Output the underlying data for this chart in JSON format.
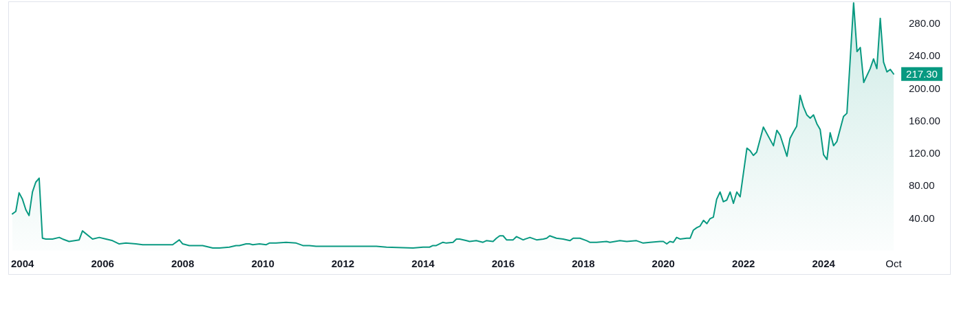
{
  "chart_data": {
    "type": "area",
    "x": [
      "2003-10",
      "2003-11",
      "2003-12",
      "2004-01",
      "2004-02",
      "2004-03",
      "2004-04",
      "2004-05",
      "2004-06",
      "2004-07",
      "2004-08",
      "2004-10",
      "2004-12",
      "2005-01",
      "2005-03",
      "2005-06",
      "2005-07",
      "2005-10",
      "2005-12",
      "2006-02",
      "2006-04",
      "2006-06",
      "2006-08",
      "2006-11",
      "2007-01",
      "2007-04",
      "2007-07",
      "2007-10",
      "2007-12",
      "2008-01",
      "2008-03",
      "2008-05",
      "2008-07",
      "2008-10",
      "2008-12",
      "2009-03",
      "2009-05",
      "2009-06",
      "2009-08",
      "2009-09",
      "2009-10",
      "2009-12",
      "2010-02",
      "2010-03",
      "2010-05",
      "2010-08",
      "2010-11",
      "2011-01",
      "2011-03",
      "2011-05",
      "2011-09",
      "2012-02",
      "2012-08",
      "2012-11",
      "2013-02",
      "2013-10",
      "2014-01",
      "2014-03",
      "2014-04",
      "2014-05",
      "2014-07",
      "2014-08",
      "2014-10",
      "2014-11",
      "2014-12",
      "2015-02",
      "2015-03",
      "2015-05",
      "2015-07",
      "2015-08",
      "2015-10",
      "2015-11",
      "2015-12",
      "2016-01",
      "2016-02",
      "2016-04",
      "2016-05",
      "2016-07",
      "2016-09",
      "2016-11",
      "2017-01",
      "2017-02",
      "2017-03",
      "2017-05",
      "2017-07",
      "2017-09",
      "2017-10",
      "2017-12",
      "2018-02",
      "2018-03",
      "2018-05",
      "2018-08",
      "2018-09",
      "2018-12",
      "2019-02",
      "2019-05",
      "2019-07",
      "2019-09",
      "2019-12",
      "2020-01",
      "2020-02",
      "2020-03",
      "2020-04",
      "2020-05",
      "2020-06",
      "2020-08",
      "2020-09",
      "2020-10",
      "2020-11",
      "2020-12",
      "2021-01",
      "2021-02",
      "2021-03",
      "2021-04",
      "2021-05",
      "2021-06",
      "2021-07",
      "2021-08",
      "2021-09",
      "2021-10",
      "2021-11",
      "2021-12",
      "2022-02",
      "2022-03",
      "2022-04",
      "2022-05",
      "2022-07",
      "2022-10",
      "2022-11",
      "2022-12",
      "2023-02",
      "2023-03",
      "2023-04",
      "2023-05",
      "2023-06",
      "2023-07",
      "2023-08",
      "2023-09",
      "2023-10",
      "2023-11",
      "2023-12",
      "2024-01",
      "2024-02",
      "2024-03",
      "2024-04",
      "2024-05",
      "2024-07",
      "2024-08",
      "2024-09",
      "2024-10",
      "2024-11",
      "2024-12",
      "2025-01",
      "2025-03",
      "2025-04",
      "2025-05",
      "2025-06",
      "2025-07",
      "2025-08",
      "2025-09",
      "2025-10"
    ],
    "series": [
      {
        "color": "#089981",
        "values": [
          45,
          48,
          71,
          63,
          50,
          43,
          72,
          84,
          89,
          15,
          14,
          14,
          16,
          14,
          11,
          13,
          24,
          14,
          16,
          14,
          12,
          8,
          9,
          8,
          7,
          7,
          7,
          7,
          13,
          8,
          6,
          6,
          6,
          3,
          3,
          4,
          6,
          6,
          8,
          8,
          7,
          8,
          7,
          9,
          9,
          10,
          9,
          6,
          6,
          5,
          5,
          5,
          5,
          5,
          4,
          3,
          4,
          4,
          6,
          6,
          10,
          9,
          10,
          14,
          14,
          12,
          11,
          12,
          10,
          12,
          11,
          15,
          18,
          18,
          13,
          13,
          17,
          13,
          16,
          13,
          14,
          15,
          18,
          15,
          14,
          12,
          15,
          15,
          12,
          10,
          10,
          11,
          10,
          12,
          11,
          12,
          9,
          10,
          11,
          11,
          8,
          11,
          10,
          16,
          14,
          15,
          15,
          25,
          28,
          30,
          37,
          33,
          39,
          41,
          63,
          72,
          60,
          62,
          72,
          58,
          72,
          66,
          126,
          123,
          117,
          121,
          152,
          129,
          148,
          142,
          116,
          138,
          146,
          153,
          191,
          177,
          167,
          163,
          167,
          156,
          149,
          118,
          112,
          145,
          129,
          134,
          165,
          169,
          238,
          305,
          245,
          250,
          207,
          224,
          236,
          224,
          286,
          232,
          220,
          223,
          217.3
        ]
      }
    ],
    "xlim": [
      "2003-10",
      "2025-10"
    ],
    "xticks": [
      "2004",
      "2006",
      "2008",
      "2010",
      "2012",
      "2014",
      "2016",
      "2018",
      "2020",
      "2022",
      "2024",
      {
        "value": "2025-10",
        "label": "Oct"
      }
    ],
    "ylim": [
      0,
      306
    ],
    "yticks": [
      {
        "value": 40,
        "label": "40.00"
      },
      {
        "value": 80,
        "label": "80.00"
      },
      {
        "value": 120,
        "label": "120.00"
      },
      {
        "value": 160,
        "label": "160.00"
      },
      {
        "value": 200,
        "label": "200.00"
      },
      {
        "value": 240,
        "label": "240.00"
      },
      {
        "value": 280,
        "label": "280.00"
      }
    ],
    "grid": false,
    "marker": "none",
    "annotations": [
      {
        "text": "217.30",
        "x": "2025-10",
        "y": 217.3
      }
    ]
  }
}
